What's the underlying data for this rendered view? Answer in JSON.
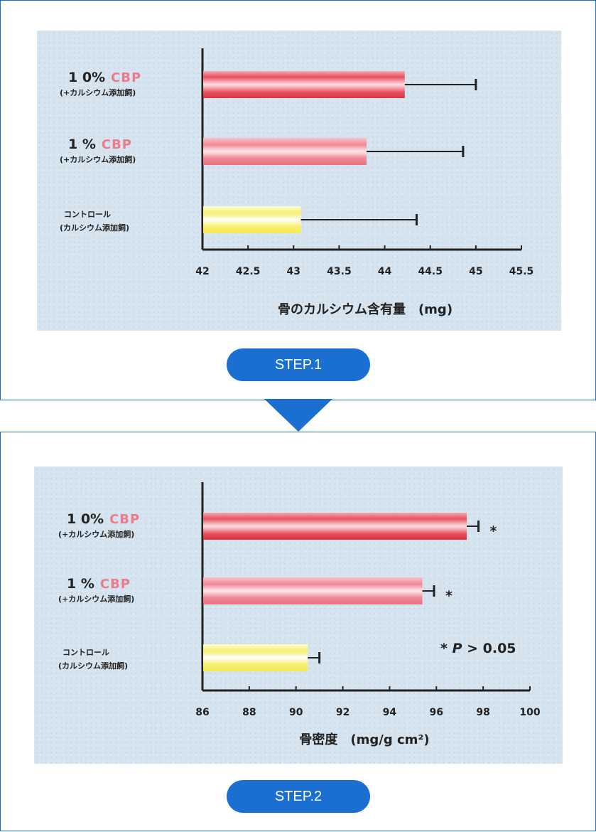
{
  "chart_data": [
    {
      "type": "bar",
      "orientation": "horizontal",
      "categories": [
        {
          "main": "1 0%",
          "cbp": "CBP",
          "sub": "(+カルシウム添加飼)"
        },
        {
          "main": "1 %",
          "cbp": "CBP",
          "sub": "(+カルシウム添加飼)"
        },
        {
          "main": "コントロール",
          "cbp": "",
          "sub": "(カルシウム添加飼)"
        }
      ],
      "values": [
        44.22,
        43.8,
        43.08
      ],
      "error_upper": [
        45.0,
        44.86,
        44.35
      ],
      "significance": [
        "",
        "",
        ""
      ],
      "bar_colors": [
        "red",
        "pink",
        "yellow"
      ],
      "xlim": [
        42,
        45.5
      ],
      "xticks": [
        "42",
        "42.5",
        "43",
        "43.5",
        "44",
        "44.5",
        "45",
        "45.5"
      ],
      "xlabel": "骨のカルシウム含有量　(mg)",
      "annotation": ""
    },
    {
      "type": "bar",
      "orientation": "horizontal",
      "categories": [
        {
          "main": "1 0%",
          "cbp": "CBP",
          "sub": "(+カルシウム添加飼)"
        },
        {
          "main": "1 %",
          "cbp": "CBP",
          "sub": "(+カルシウム添加飼)"
        },
        {
          "main": "コントロール",
          "cbp": "",
          "sub": "(カルシウム添加飼)"
        }
      ],
      "values": [
        97.3,
        95.4,
        90.5
      ],
      "error_upper": [
        97.8,
        95.9,
        91.0
      ],
      "significance": [
        "*",
        "*",
        ""
      ],
      "bar_colors": [
        "red",
        "pink",
        "yellow"
      ],
      "xlim": [
        86,
        100
      ],
      "xticks": [
        "86",
        "88",
        "90",
        "92",
        "94",
        "96",
        "98",
        "100"
      ],
      "xlabel": "骨密度　(mg/g cm²)",
      "annotation": "* P > 0.05"
    }
  ],
  "steps": {
    "step1_label": "STEP.1",
    "step2_label": "STEP.2"
  }
}
